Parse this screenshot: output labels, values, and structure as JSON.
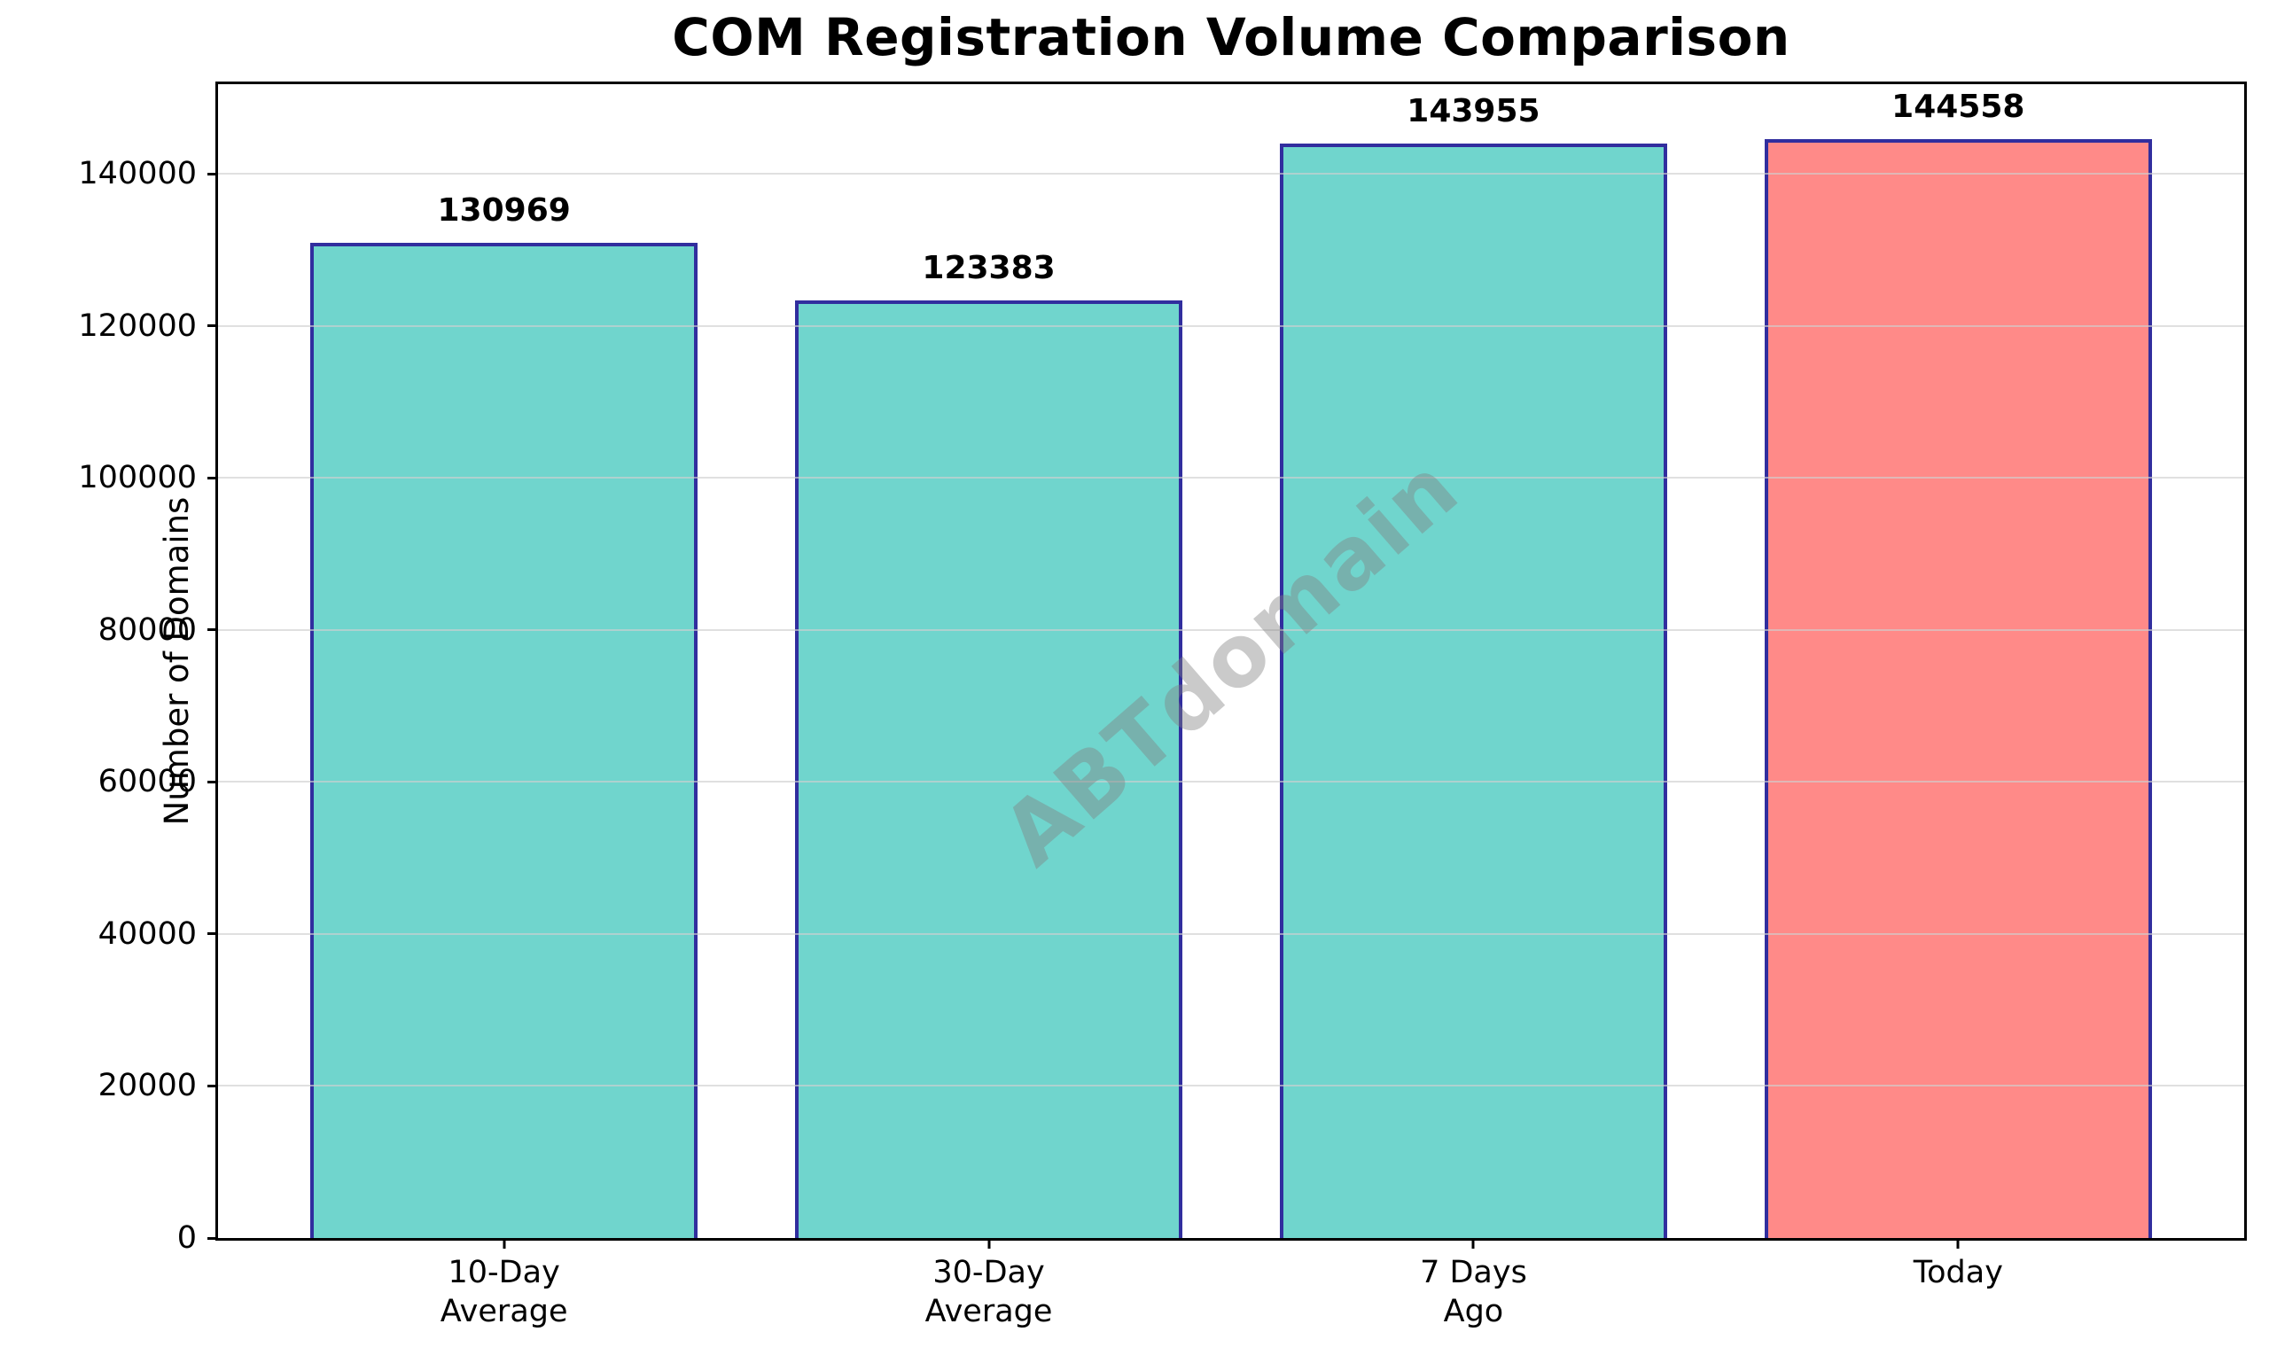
{
  "chart_data": {
    "type": "bar",
    "title": "COM Registration Volume Comparison",
    "xlabel": "",
    "ylabel": "Number of Domains",
    "categories": [
      "10-Day\nAverage",
      "30-Day\nAverage",
      "7 Days\nAgo",
      "Today"
    ],
    "values": [
      130969,
      123383,
      143955,
      144558
    ],
    "value_labels": [
      "130969",
      "123383",
      "143955",
      "144558"
    ],
    "bar_colors": [
      "#70D5CD",
      "#70D5CD",
      "#70D5CD",
      "#FF8A88"
    ],
    "bar_edge_color": "#312E9E",
    "ylim": [
      0,
      151786
    ],
    "yticks": [
      0,
      20000,
      40000,
      60000,
      80000,
      100000,
      120000,
      140000
    ],
    "ytick_labels": [
      "0",
      "20000",
      "40000",
      "60000",
      "80000",
      "100000",
      "120000",
      "140000"
    ],
    "grid": true,
    "grid_color": "#d0d0d0",
    "legend_position": "none",
    "watermark": "ABTdomain",
    "watermark_color": "#808080",
    "background_color": "#ffffff"
  }
}
